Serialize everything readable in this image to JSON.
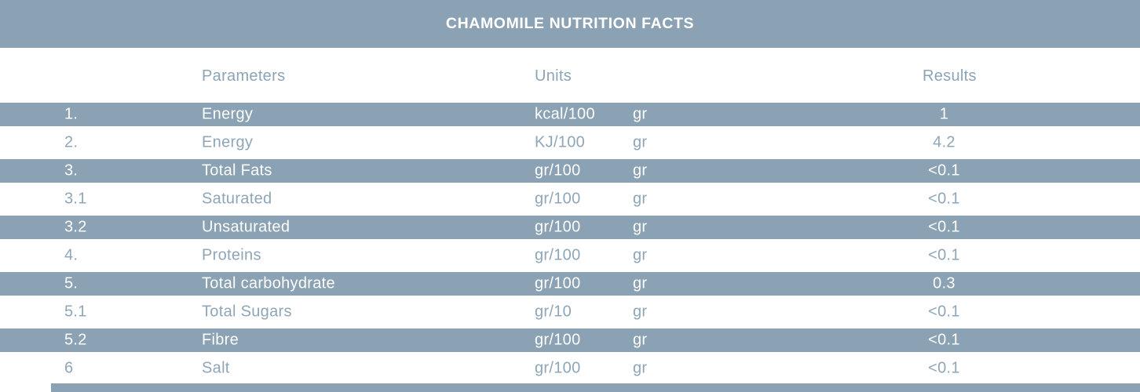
{
  "title": "CHAMOMILE NUTRITION FACTS",
  "colors": {
    "accent": "#8BA2B4",
    "row_text": "#8FA6B7",
    "header_text": "#8CA4B6",
    "title_text": "#FFFFFF"
  },
  "table": {
    "headers": [
      "Parameters",
      "Units",
      "Results"
    ],
    "rows": [
      {
        "index": "1.",
        "parameter": "Energy",
        "unit": "kcal/100",
        "unit2": "gr",
        "result": "1",
        "striped": true
      },
      {
        "index": "2.",
        "parameter": "Energy",
        "unit": "KJ/100",
        "unit2": "gr",
        "result": "4.2",
        "striped": false
      },
      {
        "index": "3.",
        "parameter": "Total Fats",
        "unit": "gr/100",
        "unit2": "gr",
        "result": "<0.1",
        "striped": true
      },
      {
        "index": "3.1",
        "parameter": "Saturated",
        "unit": "gr/100",
        "unit2": "gr",
        "result": "<0.1",
        "striped": false
      },
      {
        "index": "3.2",
        "parameter": "Unsaturated",
        "unit": "gr/100",
        "unit2": "gr",
        "result": "<0.1",
        "striped": true
      },
      {
        "index": "4.",
        "parameter": "Proteins",
        "unit": "gr/100",
        "unit2": "gr",
        "result": "<0.1",
        "striped": false
      },
      {
        "index": "5.",
        "parameter": "Total carbohydrate",
        "unit": "gr/100",
        "unit2": "gr",
        "result": "0.3",
        "striped": true
      },
      {
        "index": "5.1",
        "parameter": "Total Sugars",
        "unit": "gr/10",
        "unit2": "gr",
        "result": "<0.1",
        "striped": false
      },
      {
        "index": "5.2",
        "parameter": "Fibre",
        "unit": "gr/100",
        "unit2": "gr",
        "result": "<0.1",
        "striped": true
      },
      {
        "index": "6",
        "parameter": "Salt",
        "unit": "gr/100",
        "unit2": "gr",
        "result": "<0.1",
        "striped": false
      }
    ]
  }
}
